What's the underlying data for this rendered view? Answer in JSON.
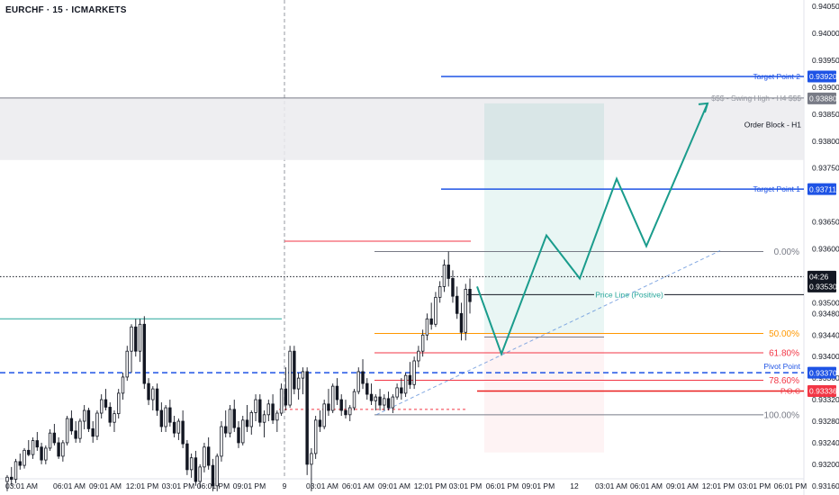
{
  "chart_data": {
    "type": "candlestick",
    "title": "EURCHF · 15 · ICMARKETS",
    "ylim": [
      0.93143,
      0.94062
    ],
    "y_ticks": [
      "0.94050",
      "0.94000",
      "0.93950",
      "0.93900",
      "0.93850",
      "0.93800",
      "0.93750",
      "0.93650",
      "0.93600",
      "0.93500",
      "0.93480",
      "0.93440",
      "0.93400",
      "0.93360",
      "0.93320",
      "0.93280",
      "0.93240",
      "0.93200",
      "0.93160"
    ],
    "x_ticks": [
      "03:01 AM",
      "06:01 AM",
      "09:01 AM",
      "12:01 PM",
      "03:01 PM",
      "06:01 PM",
      "09:01 PM",
      "9",
      "03:01 AM",
      "06:01 AM",
      "09:01 AM",
      "12:01 PM",
      "03:01 PM",
      "06:01 PM",
      "09:01 PM",
      "12",
      "03:01 AM",
      "06:01 AM",
      "09:01 AM",
      "12:01 PM",
      "03:01 PM",
      "06:01 PM"
    ],
    "candles": [
      {
        "o": 0.93168,
        "h": 0.9318,
        "l": 0.9315,
        "c": 0.93176
      },
      {
        "o": 0.93176,
        "h": 0.93195,
        "l": 0.9316,
        "c": 0.93172
      },
      {
        "o": 0.93172,
        "h": 0.9321,
        "l": 0.93165,
        "c": 0.93205
      },
      {
        "o": 0.93205,
        "h": 0.9322,
        "l": 0.9319,
        "c": 0.93198
      },
      {
        "o": 0.93198,
        "h": 0.9323,
        "l": 0.93192,
        "c": 0.93226
      },
      {
        "o": 0.93226,
        "h": 0.93245,
        "l": 0.93215,
        "c": 0.93218
      },
      {
        "o": 0.93218,
        "h": 0.9325,
        "l": 0.9321,
        "c": 0.93244
      },
      {
        "o": 0.93244,
        "h": 0.9326,
        "l": 0.93225,
        "c": 0.93232
      },
      {
        "o": 0.93232,
        "h": 0.9324,
        "l": 0.932,
        "c": 0.93208
      },
      {
        "o": 0.93208,
        "h": 0.93235,
        "l": 0.932,
        "c": 0.9323
      },
      {
        "o": 0.9323,
        "h": 0.93265,
        "l": 0.93225,
        "c": 0.93258
      },
      {
        "o": 0.93258,
        "h": 0.93275,
        "l": 0.93235,
        "c": 0.9324
      },
      {
        "o": 0.9324,
        "h": 0.9325,
        "l": 0.9321,
        "c": 0.93215
      },
      {
        "o": 0.93215,
        "h": 0.93245,
        "l": 0.93205,
        "c": 0.9324
      },
      {
        "o": 0.9324,
        "h": 0.9329,
        "l": 0.93235,
        "c": 0.93285
      },
      {
        "o": 0.93285,
        "h": 0.933,
        "l": 0.93255,
        "c": 0.93262
      },
      {
        "o": 0.93262,
        "h": 0.9328,
        "l": 0.9324,
        "c": 0.93248
      },
      {
        "o": 0.93248,
        "h": 0.93285,
        "l": 0.9324,
        "c": 0.9328
      },
      {
        "o": 0.9328,
        "h": 0.9331,
        "l": 0.93265,
        "c": 0.933
      },
      {
        "o": 0.933,
        "h": 0.93305,
        "l": 0.9326,
        "c": 0.93266
      },
      {
        "o": 0.93266,
        "h": 0.9328,
        "l": 0.9324,
        "c": 0.93252
      },
      {
        "o": 0.93252,
        "h": 0.933,
        "l": 0.93245,
        "c": 0.93295
      },
      {
        "o": 0.93295,
        "h": 0.9333,
        "l": 0.93285,
        "c": 0.9332
      },
      {
        "o": 0.9332,
        "h": 0.9334,
        "l": 0.933,
        "c": 0.93306
      },
      {
        "o": 0.93306,
        "h": 0.93315,
        "l": 0.9327,
        "c": 0.93278
      },
      {
        "o": 0.93278,
        "h": 0.933,
        "l": 0.9326,
        "c": 0.93294
      },
      {
        "o": 0.93294,
        "h": 0.9334,
        "l": 0.93285,
        "c": 0.93332
      },
      {
        "o": 0.93332,
        "h": 0.9337,
        "l": 0.9332,
        "c": 0.93362
      },
      {
        "o": 0.93362,
        "h": 0.9342,
        "l": 0.93355,
        "c": 0.9341
      },
      {
        "o": 0.9341,
        "h": 0.9346,
        "l": 0.9337,
        "c": 0.93455
      },
      {
        "o": 0.93455,
        "h": 0.9347,
        "l": 0.934,
        "c": 0.9341
      },
      {
        "o": 0.9341,
        "h": 0.9347,
        "l": 0.9339,
        "c": 0.9346
      },
      {
        "o": 0.9346,
        "h": 0.93475,
        "l": 0.9334,
        "c": 0.9335
      },
      {
        "o": 0.9335,
        "h": 0.9336,
        "l": 0.9331,
        "c": 0.9332
      },
      {
        "o": 0.9332,
        "h": 0.93345,
        "l": 0.933,
        "c": 0.9334
      },
      {
        "o": 0.9334,
        "h": 0.9335,
        "l": 0.9329,
        "c": 0.933
      },
      {
        "o": 0.933,
        "h": 0.93315,
        "l": 0.9326,
        "c": 0.9327
      },
      {
        "o": 0.9327,
        "h": 0.9331,
        "l": 0.9326,
        "c": 0.93305
      },
      {
        "o": 0.93305,
        "h": 0.9332,
        "l": 0.9327,
        "c": 0.93278
      },
      {
        "o": 0.93278,
        "h": 0.9329,
        "l": 0.9325,
        "c": 0.93258
      },
      {
        "o": 0.93258,
        "h": 0.93285,
        "l": 0.93245,
        "c": 0.9328
      },
      {
        "o": 0.9328,
        "h": 0.933,
        "l": 0.9323,
        "c": 0.93238
      },
      {
        "o": 0.93238,
        "h": 0.93245,
        "l": 0.9318,
        "c": 0.9319
      },
      {
        "o": 0.9319,
        "h": 0.9322,
        "l": 0.93175,
        "c": 0.93212
      },
      {
        "o": 0.93212,
        "h": 0.93225,
        "l": 0.9316,
        "c": 0.93168
      },
      {
        "o": 0.93168,
        "h": 0.932,
        "l": 0.93155,
        "c": 0.93195
      },
      {
        "o": 0.93195,
        "h": 0.9324,
        "l": 0.93185,
        "c": 0.93232
      },
      {
        "o": 0.93232,
        "h": 0.9325,
        "l": 0.9319,
        "c": 0.93198
      },
      {
        "o": 0.93198,
        "h": 0.9321,
        "l": 0.9315,
        "c": 0.9316
      },
      {
        "o": 0.9316,
        "h": 0.9322,
        "l": 0.9315,
        "c": 0.93215
      },
      {
        "o": 0.93215,
        "h": 0.9328,
        "l": 0.93205,
        "c": 0.9327
      },
      {
        "o": 0.9327,
        "h": 0.933,
        "l": 0.9325,
        "c": 0.93258
      },
      {
        "o": 0.93258,
        "h": 0.9331,
        "l": 0.9325,
        "c": 0.93302
      },
      {
        "o": 0.93302,
        "h": 0.9332,
        "l": 0.9326,
        "c": 0.93268
      },
      {
        "o": 0.93268,
        "h": 0.9328,
        "l": 0.9323,
        "c": 0.9324
      },
      {
        "o": 0.9324,
        "h": 0.9329,
        "l": 0.93235,
        "c": 0.93282
      },
      {
        "o": 0.93282,
        "h": 0.9331,
        "l": 0.9326,
        "c": 0.9327
      },
      {
        "o": 0.9327,
        "h": 0.933,
        "l": 0.93255,
        "c": 0.93296
      },
      {
        "o": 0.93296,
        "h": 0.9333,
        "l": 0.9328,
        "c": 0.9332
      },
      {
        "o": 0.9332,
        "h": 0.9333,
        "l": 0.9327,
        "c": 0.93278
      },
      {
        "o": 0.93278,
        "h": 0.933,
        "l": 0.9325,
        "c": 0.93292
      },
      {
        "o": 0.93292,
        "h": 0.9332,
        "l": 0.9328,
        "c": 0.93312
      },
      {
        "o": 0.93312,
        "h": 0.9333,
        "l": 0.93275,
        "c": 0.93282
      },
      {
        "o": 0.93282,
        "h": 0.933,
        "l": 0.9326,
        "c": 0.93295
      },
      {
        "o": 0.93295,
        "h": 0.9335,
        "l": 0.9329,
        "c": 0.9334
      },
      {
        "o": 0.9334,
        "h": 0.9338,
        "l": 0.933,
        "c": 0.9331
      },
      {
        "o": 0.9331,
        "h": 0.9342,
        "l": 0.93305,
        "c": 0.9341
      },
      {
        "o": 0.9341,
        "h": 0.9342,
        "l": 0.9333,
        "c": 0.9334
      },
      {
        "o": 0.9334,
        "h": 0.9337,
        "l": 0.9332,
        "c": 0.9336
      },
      {
        "o": 0.9336,
        "h": 0.9338,
        "l": 0.9333,
        "c": 0.93372
      },
      {
        "o": 0.93372,
        "h": 0.9338,
        "l": 0.9318,
        "c": 0.932
      },
      {
        "o": 0.932,
        "h": 0.9323,
        "l": 0.9315,
        "c": 0.9322
      },
      {
        "o": 0.9322,
        "h": 0.9329,
        "l": 0.9321,
        "c": 0.93282
      },
      {
        "o": 0.93282,
        "h": 0.933,
        "l": 0.9326,
        "c": 0.9327
      },
      {
        "o": 0.9327,
        "h": 0.9332,
        "l": 0.93265,
        "c": 0.93312
      },
      {
        "o": 0.93312,
        "h": 0.9334,
        "l": 0.9329,
        "c": 0.933
      },
      {
        "o": 0.933,
        "h": 0.9335,
        "l": 0.93295,
        "c": 0.93345
      },
      {
        "o": 0.93345,
        "h": 0.9336,
        "l": 0.9331,
        "c": 0.9332
      },
      {
        "o": 0.9332,
        "h": 0.9333,
        "l": 0.9329,
        "c": 0.933
      },
      {
        "o": 0.933,
        "h": 0.9332,
        "l": 0.93285,
        "c": 0.93292
      },
      {
        "o": 0.93292,
        "h": 0.9331,
        "l": 0.9328,
        "c": 0.93305
      },
      {
        "o": 0.93305,
        "h": 0.9334,
        "l": 0.933,
        "c": 0.93335
      },
      {
        "o": 0.93335,
        "h": 0.9338,
        "l": 0.9333,
        "c": 0.93372
      },
      {
        "o": 0.93372,
        "h": 0.93395,
        "l": 0.9334,
        "c": 0.9335
      },
      {
        "o": 0.9335,
        "h": 0.9336,
        "l": 0.9332,
        "c": 0.9333
      },
      {
        "o": 0.9333,
        "h": 0.9335,
        "l": 0.9331,
        "c": 0.93318
      },
      {
        "o": 0.93318,
        "h": 0.9333,
        "l": 0.933,
        "c": 0.93325
      },
      {
        "o": 0.93325,
        "h": 0.9334,
        "l": 0.933,
        "c": 0.9331
      },
      {
        "o": 0.9331,
        "h": 0.9333,
        "l": 0.933,
        "c": 0.93322
      },
      {
        "o": 0.93322,
        "h": 0.93335,
        "l": 0.933,
        "c": 0.93305
      },
      {
        "o": 0.93305,
        "h": 0.9333,
        "l": 0.93295,
        "c": 0.93325
      },
      {
        "o": 0.93325,
        "h": 0.9335,
        "l": 0.9332,
        "c": 0.93342
      },
      {
        "o": 0.93342,
        "h": 0.9336,
        "l": 0.9332,
        "c": 0.93332
      },
      {
        "o": 0.93332,
        "h": 0.9337,
        "l": 0.93325,
        "c": 0.93365
      },
      {
        "o": 0.93365,
        "h": 0.9339,
        "l": 0.9334,
        "c": 0.93348
      },
      {
        "o": 0.93348,
        "h": 0.934,
        "l": 0.9334,
        "c": 0.93392
      },
      {
        "o": 0.93392,
        "h": 0.9342,
        "l": 0.9338,
        "c": 0.9341
      },
      {
        "o": 0.9341,
        "h": 0.9345,
        "l": 0.934,
        "c": 0.9344
      },
      {
        "o": 0.9344,
        "h": 0.9348,
        "l": 0.9343,
        "c": 0.9347
      },
      {
        "o": 0.9347,
        "h": 0.935,
        "l": 0.9345,
        "c": 0.9346
      },
      {
        "o": 0.9346,
        "h": 0.9352,
        "l": 0.93455,
        "c": 0.9351
      },
      {
        "o": 0.9351,
        "h": 0.9354,
        "l": 0.935,
        "c": 0.9353
      },
      {
        "o": 0.9353,
        "h": 0.9358,
        "l": 0.9352,
        "c": 0.9357
      },
      {
        "o": 0.9357,
        "h": 0.93595,
        "l": 0.9353,
        "c": 0.93545
      },
      {
        "o": 0.93545,
        "h": 0.9356,
        "l": 0.935,
        "c": 0.93512
      },
      {
        "o": 0.93512,
        "h": 0.9353,
        "l": 0.9347,
        "c": 0.9348
      },
      {
        "o": 0.9348,
        "h": 0.935,
        "l": 0.9343,
        "c": 0.93445
      },
      {
        "o": 0.93445,
        "h": 0.93535,
        "l": 0.9343,
        "c": 0.93525
      },
      {
        "o": 0.93525,
        "h": 0.93545,
        "l": 0.9348,
        "c": 0.93502
      }
    ],
    "levels": {
      "target_point_2": {
        "label": "Target Point 2",
        "value": "0.93920",
        "y": 0.9392
      },
      "swing_high": {
        "label": "$$$ - Swing High - H4 $$$",
        "value": "0.93880",
        "y": 0.9388
      },
      "order_block": {
        "label": "Order Block - H1",
        "top": 0.9388,
        "bottom": 0.93765
      },
      "target_point_1": {
        "label": "Target Point 1",
        "value": "0.93711",
        "y": 0.93711
      },
      "current_price": {
        "value": "0.93530",
        "y": 0.9353,
        "countdown": "04:26"
      },
      "price_line": {
        "label": "Price Line (Positive)",
        "y": 0.93515
      },
      "pivot_point": {
        "label": "Pivot Point",
        "value": "0.93370",
        "y": 0.9337
      },
      "poc": {
        "label": "P.O.C",
        "value": "0.93336",
        "y": 0.93336
      },
      "left_resistance": 0.9347,
      "left_red_dashed": 0.93302
    },
    "fibonacci": [
      {
        "ratio": "0.00%",
        "y": 0.93595
      },
      {
        "ratio": "50.00%",
        "y": 0.93443
      },
      {
        "ratio": "61.80%",
        "y": 0.93407
      },
      {
        "ratio": "78.60%",
        "y": 0.93356
      },
      {
        "ratio": "100.00%",
        "y": 0.93292
      }
    ],
    "position": {
      "entry": 0.93443,
      "target": 0.9387,
      "stop": 0.93222
    },
    "projection": [
      0.9353,
      0.93405,
      0.93625,
      0.93545,
      0.9373,
      0.93605,
      0.9387
    ]
  }
}
